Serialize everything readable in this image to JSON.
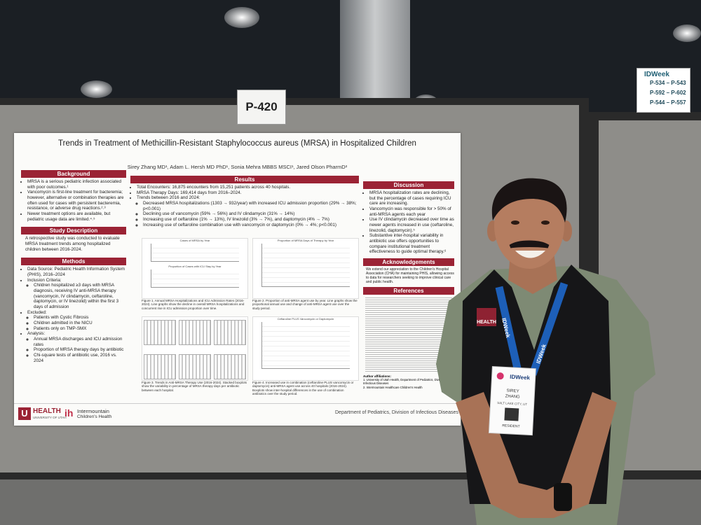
{
  "signs": {
    "booth": "P-420",
    "idweek": {
      "brand": "IDWeek",
      "ranges": [
        "P-534 – P-543",
        "P-592 – P-602",
        "P-544 – P-557"
      ]
    }
  },
  "poster": {
    "title": "Trends in Treatment of Methicillin-Resistant Staphylococcus aureus (MRSA) in Hospitalized Children",
    "authors": "Sirey Zhang MD¹, Adam L. Hersh MD PhD¹, Sonia Mehra MBBS MSCI¹, Jared Olson PharmD²",
    "background": {
      "heading": "Background",
      "items": [
        "MRSA is a serious pediatric infection associated with poor outcomes.¹",
        "Vancomycin is first-line treatment for bacteremia; however, alternative or combination therapies are often used for cases with persistent bacteremia, resistance, or adverse drug reactions.²˒³",
        "Newer treatment options are available, but pediatric usage data are limited.⁴˒⁵"
      ]
    },
    "study": {
      "heading": "Study Description",
      "text": "A retrospective study was conducted to evaluate MRSA treatment trends among hospitalized children between 2016-2024."
    },
    "methods": {
      "heading": "Methods",
      "items": [
        {
          "text": "Data Source: Pediatric Health Information System (PHIS), 2016–2024",
          "sub": []
        },
        {
          "text": "Inclusion Criteria:",
          "sub": [
            "Children hospitalized ≥3 days with MRSA diagnosis, receiving IV anti-MRSA therapy (vancomycin, IV clindamycin, ceftaroline, daptomycin, or IV linezolid) within the first 3 days of admission"
          ]
        },
        {
          "text": "Excluded:",
          "sub": [
            "Patients with Cystic Fibrosis",
            "Children admitted in the NICU",
            "Patients only on TMP-SMX"
          ]
        },
        {
          "text": "Analysis:",
          "sub": [
            "Annual MRSA discharges and ICU admission rates",
            "Proportion of MRSA therapy days by antibiotic",
            "Chi-square tests of antibiotic use, 2016 vs. 2024"
          ]
        }
      ]
    },
    "results": {
      "heading": "Results",
      "items": [
        {
          "text": "Total Encounters: 16,875 encounters from 15,251 patients across 40 hospitals.",
          "sub": []
        },
        {
          "text": "MRSA Therapy Days: 169,414 days from 2016–2024.",
          "sub": []
        },
        {
          "text": "Trends between 2016 and 2024:",
          "sub": [
            "Decreased MRSA hospitalizations (1303 → 932/year) with increased ICU admission proportion (29% → 38%; p<0.001)",
            "Declining use of vancomycin (59% → 56%) and IV clindamycin (31% → 14%)",
            "Increasing use of ceftaroline (1% → 13%), IV linezolid (3% → 7%), and daptomycin (4% → 7%)",
            "Increasing use of ceftaroline combination use with vancomycin or daptomycin (0% → 4%; p<0.001)"
          ]
        }
      ]
    },
    "figures": [
      {
        "charts": [
          "Cases of MRSA by Year",
          "Proportion of Cases with ICU Stay by Year"
        ],
        "caption": "Figure 1. Annual MRSA Hospitalizations and ICU Admission Rates (2016-2024). Line graphs show the decline in overall MRSA hospitalizations and concurrent rise in ICU admission proportion over time."
      },
      {
        "charts": [
          "Proportion of MRSA Days of Therapy by Year"
        ],
        "caption": "Figure 2. Proportion of anti-MRSA agent use by year. Line graphs show the proportional annual use and change of anti-MRSA agent use over the study period."
      },
      {
        "charts": [],
        "caption": "Figure 3. Trends in Anti-MRSA Therapy Use (2016-2024). Stacked boxplots show the variability in percentage of MRSA therapy days per antibiotic between each hospital."
      },
      {
        "charts": [
          "Ceftaroline PLUS Vancomycin or Daptomycin"
        ],
        "caption": "Figure 4. Increased use in combination (ceftaroline PLUS vancomycin or daptomycin) anti-MRSA agent use across 40 hospitals (2016-2024). Boxplots show inter-hospital differences in the use of combination antibiotics over the study period."
      }
    ],
    "discussion": {
      "heading": "Discussion",
      "items": [
        "MRSA hospitalization rates are declining, but the percentage of cases requiring ICU care are increasing.",
        "Vancomycin was responsible for > 50% of anti-MRSA agents each year",
        "Use IV clindamycin decreased over time as newer agents increased in use (ceftaroline, linezolid, daptomycin).⁵",
        "Substantive inter-hospital variability in antibiotic use offers opportunities to compare institutional treatment effectiveness to guide optimal therapy.⁶"
      ]
    },
    "acknowledgements": {
      "heading": "Acknowledgements",
      "text": "We extend our appreciation to the Children's Hospital Association (CHA) for maintaining PHIS, allowing access to data for researchers seeking to improve clinical care and public health."
    },
    "references": {
      "heading": "References"
    },
    "affiliations": {
      "heading": "Author affiliations:",
      "items": [
        "1. University of Utah Health, Department of Pediatrics, Division of Infectious Diseases",
        "2. Intermountain Healthcare Children's Health"
      ]
    },
    "footer": {
      "uofu": "HEALTH",
      "uofu_sub": "UNIVERSITY OF UTAH",
      "ih": "Intermountain",
      "ih_sub": "Children's Health",
      "department": "Department of Pediatrics, Division of Infectious Diseases"
    }
  },
  "badge": {
    "brand": "IDWeek",
    "first": "SIREY",
    "last": "ZHANG",
    "city": "SALT LAKE CITY, UT",
    "role": "RESIDENT"
  },
  "lanyard": "IDWeek",
  "shirt_logo": "HEALTH"
}
